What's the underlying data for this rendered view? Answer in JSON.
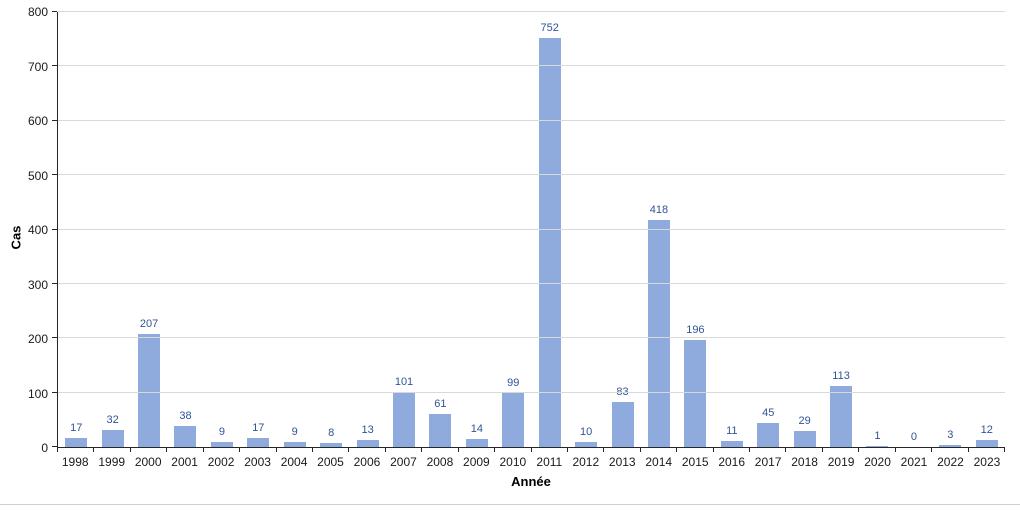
{
  "chart_data": {
    "type": "bar",
    "title": "",
    "xlabel": "Année",
    "ylabel": "Cas",
    "categories": [
      "1998",
      "1999",
      "2000",
      "2001",
      "2002",
      "2003",
      "2004",
      "2005",
      "2006",
      "2007",
      "2008",
      "2009",
      "2010",
      "2011",
      "2012",
      "2013",
      "2014",
      "2015",
      "2016",
      "2017",
      "2018",
      "2019",
      "2020",
      "2021",
      "2022",
      "2023"
    ],
    "values": [
      17,
      32,
      207,
      38,
      9,
      17,
      9,
      8,
      13,
      101,
      61,
      14,
      99,
      752,
      10,
      83,
      418,
      196,
      11,
      45,
      29,
      113,
      1,
      0,
      3,
      12
    ],
    "ylim": [
      0,
      800
    ],
    "yticks": [
      0,
      100,
      200,
      300,
      400,
      500,
      600,
      700,
      800
    ],
    "grid": true,
    "legend_position": "none",
    "data_labels": true,
    "colors": {
      "bar_fill": "#8FAADC",
      "data_label": "#305496",
      "gridline": "#D9D9D9",
      "axis_line": "#262626",
      "tick_label": "#1A1A1A"
    }
  }
}
